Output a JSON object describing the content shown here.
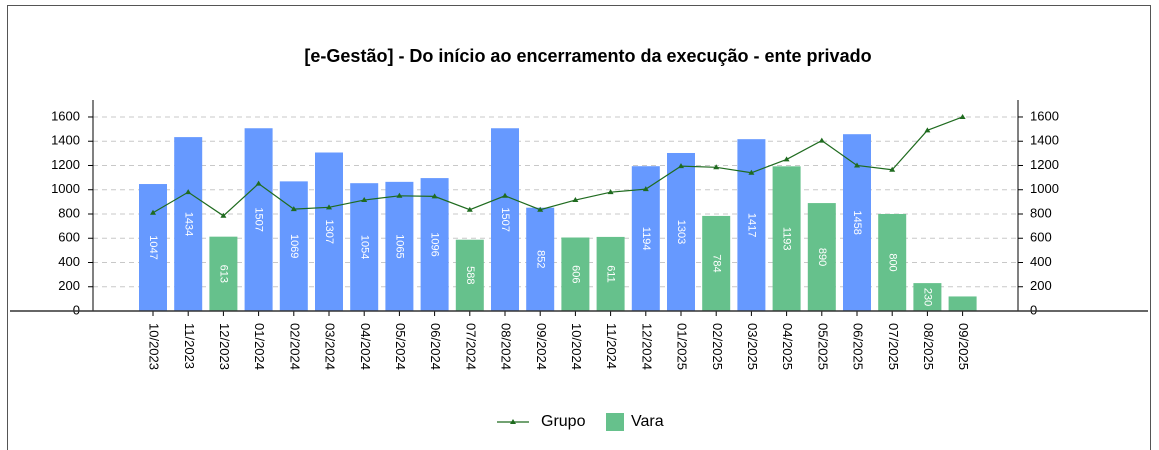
{
  "chart_data": {
    "type": "bar",
    "title": "[e-Gestão]  - Do início ao encerramento da execução - ente privado",
    "categories": [
      "10/2023",
      "11/2023",
      "12/2023",
      "01/2024",
      "02/2024",
      "03/2024",
      "04/2024",
      "05/2024",
      "06/2024",
      "07/2024",
      "08/2024",
      "09/2024",
      "10/2024",
      "11/2024",
      "12/2024",
      "01/2025",
      "02/2025",
      "03/2025",
      "04/2025",
      "05/2025",
      "06/2025",
      "07/2025",
      "08/2025",
      "09/2025"
    ],
    "series": [
      {
        "name": "Grupo",
        "type": "line",
        "axis": "y2",
        "color": "#1f6b1f",
        "values": [
          810,
          980,
          785,
          1050,
          840,
          855,
          915,
          950,
          945,
          835,
          950,
          835,
          915,
          980,
          1005,
          1195,
          1185,
          1140,
          1250,
          1405,
          1200,
          1165,
          1490,
          1600
        ]
      },
      {
        "name": "Vara",
        "type": "bar",
        "color": "#66c18c",
        "colors": [
          "#6699ff",
          "#6699ff",
          "#66c18c",
          "#6699ff",
          "#6699ff",
          "#6699ff",
          "#6699ff",
          "#6699ff",
          "#6699ff",
          "#66c18c",
          "#6699ff",
          "#6699ff",
          "#66c18c",
          "#66c18c",
          "#6699ff",
          "#6699ff",
          "#66c18c",
          "#6699ff",
          "#66c18c",
          "#66c18c",
          "#6699ff",
          "#66c18c",
          "#66c18c",
          "#66c18c"
        ],
        "values": [
          1047,
          1434,
          613,
          1507,
          1069,
          1307,
          1054,
          1065,
          1096,
          588,
          1507,
          852,
          606,
          611,
          1194,
          1303,
          784,
          1417,
          1193,
          890,
          1458,
          800,
          230,
          120
        ],
        "value_labels": [
          "1047",
          "1434",
          "613",
          "1507",
          "1069",
          "1307",
          "1054",
          "1065",
          "1096",
          "588",
          "1507",
          "852",
          "606",
          "611",
          "1194",
          "1303",
          "784",
          "1417",
          "1193",
          "890",
          "1458",
          "800",
          "230",
          null
        ]
      }
    ],
    "ylim": [
      0,
      1740
    ],
    "yticks": [
      0,
      200,
      400,
      600,
      800,
      1000,
      1200,
      1400,
      1600
    ],
    "y2lim": [
      0,
      1740
    ],
    "y2ticks": [
      0,
      200,
      400,
      600,
      800,
      1000,
      1200,
      1400,
      1600
    ],
    "grid": true,
    "legend": "bottom"
  }
}
